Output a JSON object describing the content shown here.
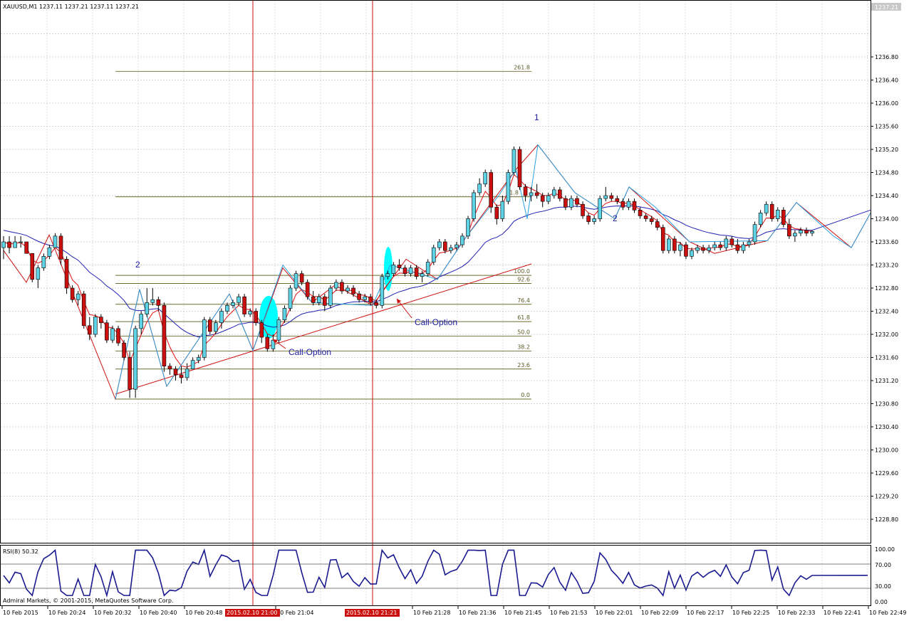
{
  "header": {
    "symbol_info": "XAUUSD,M1  1237.11 1237.21 1237.11 1237.21",
    "current_price_tag": "1237.21"
  },
  "price_axis": {
    "labels": [
      "1236.80",
      "1236.40",
      "1236.00",
      "1235.60",
      "1235.20",
      "1234.80",
      "1234.40",
      "1234.00",
      "1233.60",
      "1233.20",
      "1232.80",
      "1232.40",
      "1232.00",
      "1231.60",
      "1231.20",
      "1230.80",
      "1230.40",
      "1230.00",
      "1229.60",
      "1229.20",
      "1228.80"
    ],
    "values": [
      1236.8,
      1236.4,
      1236.0,
      1235.6,
      1235.2,
      1234.8,
      1234.4,
      1234.0,
      1233.6,
      1233.2,
      1232.8,
      1232.4,
      1232.0,
      1231.6,
      1231.2,
      1230.8,
      1230.4,
      1230.0,
      1229.6,
      1229.2,
      1228.8
    ]
  },
  "rsi_panel": {
    "title": "RSI(8) 50.32",
    "labels": [
      "100.00",
      "70.00",
      "30.00",
      "0.00"
    ],
    "levels": [
      100,
      70,
      30,
      0
    ]
  },
  "time_axis": {
    "labels": [
      "10 Feb 2015",
      "10 Feb 20:24",
      "10 Feb 20:32",
      "10 Feb 20:40",
      "10 Feb 20:48",
      "10 Feb 21:04",
      "10 Feb 21:28",
      "10 Feb 21:36",
      "10 Feb 21:45",
      "10 Feb 21:53",
      "10 Feb 22:01",
      "10 Feb 22:09",
      "10 Feb 22:17",
      "10 Feb 22:25",
      "10 Feb 22:33",
      "10 Feb 22:41",
      "10 Feb 22:49"
    ],
    "highlight_labels": [
      "2015.02.10 21:00",
      "2015.02.10 21:21"
    ]
  },
  "fibonacci": {
    "labels": [
      "261.8",
      "61.8",
      "100.0",
      "92.6",
      "76.4",
      "61.8",
      "50.0",
      "38.2",
      "23.6",
      "0.0"
    ],
    "prices": [
      1236.55,
      1234.38,
      1233.02,
      1232.88,
      1232.52,
      1232.22,
      1231.97,
      1231.71,
      1231.4,
      1230.88
    ]
  },
  "annotations": {
    "call_option_1": "Call-Option",
    "call_option_2": "Call-Option",
    "wave_label_1": "1",
    "wave_label_2a": "2",
    "wave_label_2b": "2"
  },
  "copyright": "Admiral Markets, © 2001-2015, MetaQuotes Software Corp.",
  "colors": {
    "bull": "#5fd3e6",
    "bear": "#cc1010",
    "ma_blue": "#2020b0",
    "ma_red": "#e01010",
    "zigzag_red": "#cc1010",
    "zigzag_cyan": "#2aa0e0",
    "fib": "#6b6b30",
    "grid": "#c0c0c0",
    "highlight": "#00ffff",
    "vline": "#cc1010",
    "time_highlight_bg": "#cc1010"
  },
  "chart_data": {
    "type": "candlestick",
    "symbol": "XAUUSD,M1",
    "y_range": [
      1228.6,
      1237.35
    ],
    "candles_approx": [
      [
        1233.5,
        1233.7,
        1233.3,
        1233.6
      ],
      [
        1233.6,
        1233.7,
        1233.4,
        1233.5
      ],
      [
        1233.5,
        1233.7,
        1233.5,
        1233.6
      ],
      [
        1233.6,
        1233.7,
        1233.5,
        1233.6
      ],
      [
        1233.6,
        1233.6,
        1233.4,
        1233.4
      ],
      [
        1233.4,
        1233.4,
        1232.9,
        1232.95
      ],
      [
        1232.95,
        1233.2,
        1232.8,
        1233.15
      ],
      [
        1233.15,
        1233.4,
        1233.1,
        1233.35
      ],
      [
        1233.35,
        1233.55,
        1233.3,
        1233.5
      ],
      [
        1233.5,
        1233.75,
        1233.5,
        1233.7
      ],
      [
        1233.7,
        1233.75,
        1233.2,
        1233.3
      ],
      [
        1233.3,
        1233.35,
        1232.7,
        1232.8
      ],
      [
        1232.8,
        1232.85,
        1232.55,
        1232.6
      ],
      [
        1232.6,
        1232.75,
        1232.5,
        1232.7
      ],
      [
        1232.7,
        1232.75,
        1232.1,
        1232.15
      ],
      [
        1232.15,
        1232.3,
        1231.9,
        1232.0
      ],
      [
        1232.0,
        1232.35,
        1231.95,
        1232.3
      ],
      [
        1232.3,
        1232.35,
        1232.1,
        1232.2
      ],
      [
        1232.2,
        1232.25,
        1231.85,
        1231.9
      ],
      [
        1231.9,
        1232.15,
        1231.85,
        1232.1
      ],
      [
        1232.1,
        1232.15,
        1231.8,
        1231.85
      ],
      [
        1231.85,
        1231.9,
        1231.55,
        1231.6
      ],
      [
        1231.6,
        1231.7,
        1230.9,
        1231.05
      ],
      [
        1231.05,
        1232.15,
        1230.9,
        1232.1
      ],
      [
        1232.1,
        1232.4,
        1232.0,
        1232.35
      ],
      [
        1232.35,
        1232.8,
        1232.3,
        1232.55
      ],
      [
        1232.55,
        1232.8,
        1232.5,
        1232.6
      ],
      [
        1232.6,
        1232.65,
        1232.4,
        1232.5
      ],
      [
        1232.5,
        1232.55,
        1231.35,
        1231.45
      ],
      [
        1231.45,
        1231.5,
        1231.3,
        1231.4
      ],
      [
        1231.4,
        1231.45,
        1231.2,
        1231.3
      ],
      [
        1231.3,
        1231.45,
        1231.15,
        1231.25
      ],
      [
        1231.25,
        1231.5,
        1231.2,
        1231.4
      ],
      [
        1231.4,
        1231.6,
        1231.4,
        1231.55
      ],
      [
        1231.55,
        1231.65,
        1231.5,
        1231.6
      ],
      [
        1231.6,
        1232.3,
        1231.55,
        1232.25
      ],
      [
        1232.25,
        1232.3,
        1232.0,
        1232.05
      ],
      [
        1232.05,
        1232.25,
        1232.0,
        1232.2
      ],
      [
        1232.2,
        1232.45,
        1232.1,
        1232.4
      ],
      [
        1232.4,
        1232.55,
        1232.35,
        1232.5
      ],
      [
        1232.5,
        1232.6,
        1232.45,
        1232.55
      ],
      [
        1232.55,
        1232.7,
        1232.5,
        1232.65
      ],
      [
        1232.65,
        1232.7,
        1232.3,
        1232.35
      ],
      [
        1232.35,
        1232.45,
        1232.3,
        1232.4
      ],
      [
        1232.4,
        1232.45,
        1232.15,
        1232.2
      ],
      [
        1232.2,
        1232.25,
        1231.85,
        1231.95
      ],
      [
        1231.95,
        1232.0,
        1231.7,
        1231.75
      ],
      [
        1231.75,
        1232.0,
        1231.7,
        1231.9
      ],
      [
        1231.9,
        1232.3,
        1231.85,
        1232.25
      ],
      [
        1232.25,
        1232.5,
        1232.2,
        1232.45
      ],
      [
        1232.45,
        1232.85,
        1232.4,
        1232.8
      ],
      [
        1232.8,
        1233.1,
        1232.75,
        1233.05
      ],
      [
        1233.05,
        1233.1,
        1232.85,
        1232.9
      ],
      [
        1232.9,
        1232.95,
        1232.6,
        1232.65
      ],
      [
        1232.65,
        1232.75,
        1232.5,
        1232.55
      ],
      [
        1232.55,
        1232.7,
        1232.5,
        1232.65
      ],
      [
        1232.65,
        1232.7,
        1232.4,
        1232.5
      ],
      [
        1232.5,
        1232.85,
        1232.45,
        1232.8
      ],
      [
        1232.8,
        1232.95,
        1232.75,
        1232.9
      ],
      [
        1232.9,
        1232.95,
        1232.7,
        1232.75
      ],
      [
        1232.75,
        1232.85,
        1232.7,
        1232.8
      ],
      [
        1232.8,
        1232.85,
        1232.65,
        1232.7
      ],
      [
        1232.7,
        1232.75,
        1232.55,
        1232.6
      ],
      [
        1232.6,
        1232.7,
        1232.55,
        1232.65
      ],
      [
        1232.65,
        1232.7,
        1232.5,
        1232.55
      ],
      [
        1232.55,
        1232.6,
        1232.45,
        1232.5
      ],
      [
        1232.5,
        1233.05,
        1232.45,
        1233.0
      ],
      [
        1233.0,
        1233.1,
        1232.95,
        1233.05
      ],
      [
        1233.05,
        1233.25,
        1233.0,
        1233.2
      ],
      [
        1233.2,
        1233.3,
        1233.1,
        1233.15
      ],
      [
        1233.15,
        1233.2,
        1233.0,
        1233.05
      ],
      [
        1233.05,
        1233.2,
        1233.0,
        1233.15
      ],
      [
        1233.15,
        1233.2,
        1232.95,
        1233.0
      ],
      [
        1233.0,
        1233.1,
        1232.9,
        1233.05
      ],
      [
        1233.05,
        1233.3,
        1233.0,
        1233.25
      ],
      [
        1233.25,
        1233.55,
        1233.2,
        1233.5
      ],
      [
        1233.5,
        1233.65,
        1233.45,
        1233.6
      ],
      [
        1233.6,
        1233.65,
        1233.4,
        1233.45
      ],
      [
        1233.45,
        1233.55,
        1233.4,
        1233.5
      ],
      [
        1233.5,
        1233.6,
        1233.45,
        1233.55
      ],
      [
        1233.55,
        1233.75,
        1233.5,
        1233.7
      ],
      [
        1233.7,
        1234.05,
        1233.65,
        1234.0
      ],
      [
        1234.0,
        1234.5,
        1233.95,
        1234.45
      ],
      [
        1234.45,
        1234.7,
        1234.4,
        1234.6
      ],
      [
        1234.6,
        1234.85,
        1234.55,
        1234.8
      ],
      [
        1234.8,
        1234.85,
        1234.1,
        1234.2
      ],
      [
        1234.2,
        1234.25,
        1233.9,
        1234.0
      ],
      [
        1234.0,
        1234.4,
        1233.95,
        1234.3
      ],
      [
        1234.3,
        1234.85,
        1234.25,
        1234.8
      ],
      [
        1234.8,
        1235.25,
        1234.75,
        1235.2
      ],
      [
        1235.2,
        1235.25,
        1234.5,
        1234.55
      ],
      [
        1234.55,
        1234.6,
        1234.3,
        1234.4
      ],
      [
        1234.4,
        1234.55,
        1234.3,
        1234.45
      ],
      [
        1234.45,
        1234.6,
        1234.35,
        1234.4
      ],
      [
        1234.4,
        1234.45,
        1234.2,
        1234.3
      ],
      [
        1234.3,
        1234.45,
        1234.25,
        1234.4
      ],
      [
        1234.4,
        1234.55,
        1234.35,
        1234.5
      ],
      [
        1234.5,
        1234.55,
        1234.3,
        1234.35
      ],
      [
        1234.35,
        1234.4,
        1234.15,
        1234.2
      ],
      [
        1234.2,
        1234.4,
        1234.15,
        1234.35
      ],
      [
        1234.35,
        1234.4,
        1234.2,
        1234.25
      ],
      [
        1234.25,
        1234.3,
        1234.0,
        1234.05
      ],
      [
        1234.05,
        1234.1,
        1233.9,
        1233.95
      ],
      [
        1233.95,
        1234.05,
        1233.9,
        1234.0
      ],
      [
        1234.0,
        1234.4,
        1233.95,
        1234.35
      ],
      [
        1234.35,
        1234.55,
        1234.3,
        1234.4
      ],
      [
        1234.4,
        1234.45,
        1234.3,
        1234.35
      ],
      [
        1234.35,
        1234.4,
        1234.25,
        1234.3
      ],
      [
        1234.3,
        1234.35,
        1234.15,
        1234.2
      ],
      [
        1234.2,
        1234.35,
        1234.15,
        1234.3
      ],
      [
        1234.3,
        1234.35,
        1234.1,
        1234.15
      ],
      [
        1234.15,
        1234.2,
        1234.0,
        1234.05
      ],
      [
        1234.05,
        1234.1,
        1233.95,
        1234.0
      ],
      [
        1234.0,
        1234.05,
        1233.9,
        1233.95
      ],
      [
        1233.95,
        1234.0,
        1233.8,
        1233.85
      ],
      [
        1233.85,
        1233.9,
        1233.4,
        1233.45
      ],
      [
        1233.45,
        1233.7,
        1233.4,
        1233.65
      ],
      [
        1233.65,
        1233.7,
        1233.4,
        1233.45
      ],
      [
        1233.45,
        1233.6,
        1233.35,
        1233.55
      ],
      [
        1233.55,
        1233.6,
        1233.3,
        1233.35
      ],
      [
        1233.35,
        1233.5,
        1233.3,
        1233.45
      ],
      [
        1233.45,
        1233.55,
        1233.4,
        1233.5
      ],
      [
        1233.5,
        1233.55,
        1233.4,
        1233.45
      ],
      [
        1233.45,
        1233.55,
        1233.4,
        1233.5
      ],
      [
        1233.5,
        1233.6,
        1233.45,
        1233.55
      ],
      [
        1233.55,
        1233.6,
        1233.45,
        1233.5
      ],
      [
        1233.5,
        1233.7,
        1233.45,
        1233.65
      ],
      [
        1233.65,
        1233.7,
        1233.5,
        1233.55
      ],
      [
        1233.55,
        1233.65,
        1233.4,
        1233.45
      ],
      [
        1233.45,
        1233.6,
        1233.4,
        1233.55
      ],
      [
        1233.55,
        1233.65,
        1233.5,
        1233.6
      ],
      [
        1233.6,
        1233.95,
        1233.55,
        1233.9
      ],
      [
        1233.9,
        1234.15,
        1233.85,
        1234.1
      ],
      [
        1234.1,
        1234.3,
        1234.05,
        1234.25
      ],
      [
        1234.25,
        1234.3,
        1233.95,
        1234.0
      ],
      [
        1234.0,
        1234.2,
        1233.95,
        1234.15
      ],
      [
        1234.15,
        1234.2,
        1233.85,
        1233.9
      ],
      [
        1233.9,
        1234.0,
        1233.65,
        1233.7
      ],
      [
        1233.7,
        1233.8,
        1233.6,
        1233.75
      ],
      [
        1233.75,
        1233.85,
        1233.7,
        1233.8
      ],
      [
        1233.8,
        1233.85,
        1233.7,
        1233.75
      ],
      [
        1233.75,
        1233.8,
        1233.7,
        1233.78
      ]
    ]
  }
}
